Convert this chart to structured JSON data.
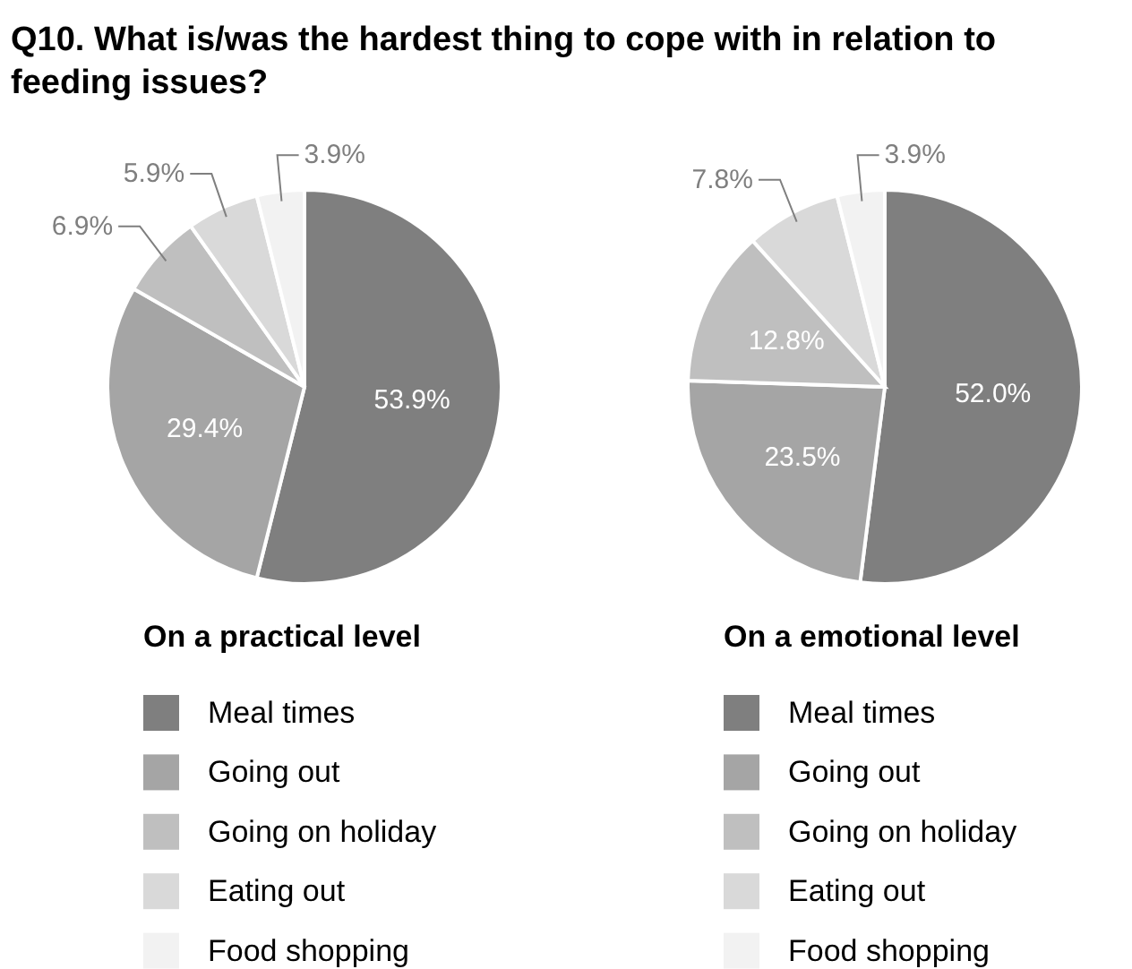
{
  "chart_data": [
    {
      "type": "pie",
      "title": "Q10. What is/was the hardest thing to cope with in relation to feeding issues?",
      "subtitle": "On a practical level",
      "categories": [
        "Meal times",
        "Going out",
        "Going on holiday",
        "Eating out",
        "Food shopping"
      ],
      "values": [
        53.9,
        29.4,
        6.9,
        5.9,
        3.9
      ],
      "value_labels": [
        "53.9%",
        "29.4%",
        "6.9%",
        "5.9%",
        "3.9%"
      ],
      "colors": [
        "#7f7f7f",
        "#a5a5a5",
        "#bfbfbf",
        "#d9d9d9",
        "#f2f2f2"
      ],
      "legend": "bottom"
    },
    {
      "type": "pie",
      "subtitle": "On a emotional level",
      "categories": [
        "Meal times",
        "Going out",
        "Going on holiday",
        "Eating out",
        "Food shopping"
      ],
      "values": [
        52.0,
        23.5,
        12.8,
        7.8,
        3.9
      ],
      "value_labels": [
        "52.0%",
        "23.5%",
        "12.8%",
        "7.8%",
        "3.9%"
      ],
      "colors": [
        "#7f7f7f",
        "#a5a5a5",
        "#bfbfbf",
        "#d9d9d9",
        "#f2f2f2"
      ],
      "legend": "bottom"
    }
  ]
}
